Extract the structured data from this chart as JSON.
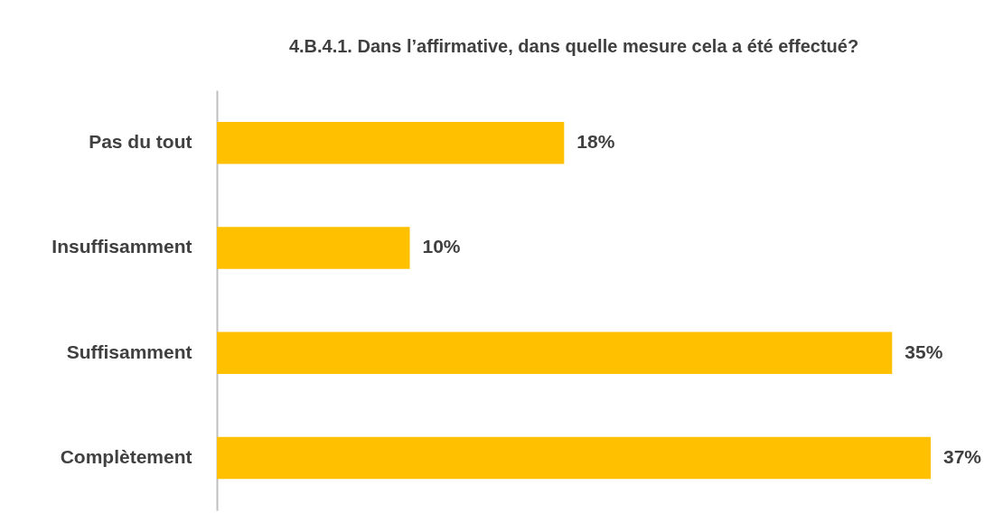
{
  "chart_data": {
    "type": "bar",
    "orientation": "horizontal",
    "title": "4.B.4.1. Dans l’affirmative, dans quelle mesure cela a été effectué?",
    "categories": [
      "Pas du tout",
      "Insuffisamment",
      "Suffisamment",
      "Complètement"
    ],
    "values": [
      18,
      10,
      35,
      37
    ],
    "color": "#ffc000",
    "value_labels": [
      "18%",
      "10%",
      "35%",
      "37%"
    ]
  }
}
